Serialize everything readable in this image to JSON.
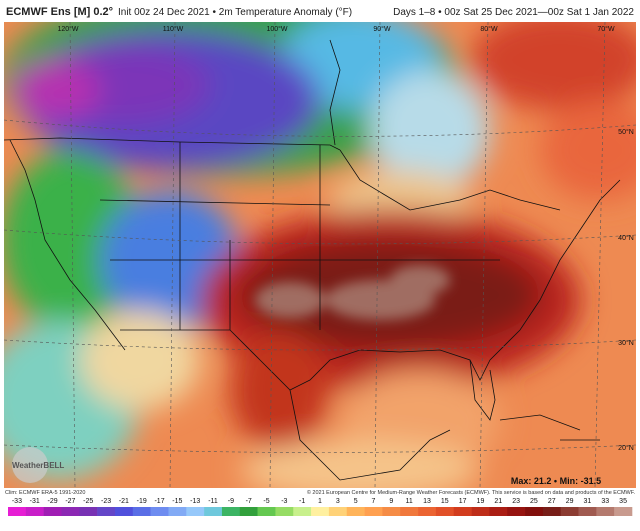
{
  "header": {
    "model": "ECMWF Ens [M] 0.2°",
    "init": "Init 00z 24 Dec 2021 • 2m Temperature Anomaly (°F)",
    "valid": "Days 1–8 • 00z Sat 25 Dec 2021—00z Sat 1 Jan 2022"
  },
  "map": {
    "longitude_labels": [
      "120°W",
      "110°W",
      "100°W",
      "90°W",
      "80°W",
      "70°W"
    ],
    "latitude_labels": [
      "50°N",
      "40°N",
      "30°N",
      "20°N"
    ]
  },
  "footer": {
    "climatology": "Clim: ECMWF ERA-5 1991-2020",
    "copyright": "© 2021 European Centre for Medium-Range Weather Forecasts (ECMWF). This service is based on data and products of the ECMWF.",
    "extremes": "Max: 21.2 • Min: -31.5",
    "logo": "WeatherBELL"
  },
  "colorbar": {
    "labels": [
      -33,
      -31,
      -29,
      -27,
      -25,
      -23,
      -21,
      -19,
      -17,
      -15,
      -13,
      -11,
      -9,
      -7,
      -5,
      -3,
      -1,
      1,
      3,
      5,
      7,
      9,
      11,
      13,
      15,
      17,
      19,
      21,
      23,
      25,
      27,
      29,
      31,
      33,
      35
    ]
  }
}
